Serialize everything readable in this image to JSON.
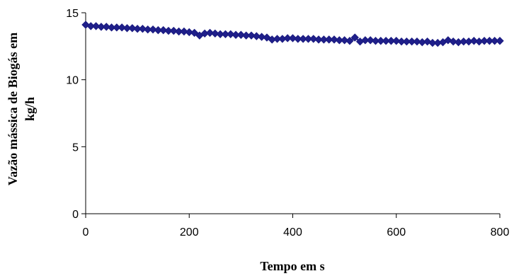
{
  "chart_data": {
    "type": "line",
    "title": "",
    "xlabel": "Tempo em s",
    "ylabel_lines": [
      "Vazão mássica de Biogás em",
      "kg/h"
    ],
    "xlim": [
      0,
      800
    ],
    "ylim": [
      0,
      15
    ],
    "x_ticks": [
      0,
      200,
      400,
      600,
      800
    ],
    "y_ticks": [
      0,
      5,
      10,
      15
    ],
    "x_tick_labels": [
      "0",
      "200",
      "400",
      "600",
      "800"
    ],
    "y_tick_labels": [
      "0",
      "5",
      "10",
      "15"
    ],
    "grid": false,
    "legend": "none",
    "colors": {
      "series": "#1a1a80",
      "marker": "#1f1f8a",
      "axis": "#000000"
    },
    "series": [
      {
        "marker": "diamond",
        "x": [
          0,
          10,
          20,
          30,
          40,
          50,
          60,
          70,
          80,
          90,
          100,
          110,
          120,
          130,
          140,
          150,
          160,
          170,
          180,
          190,
          200,
          210,
          220,
          230,
          240,
          250,
          260,
          270,
          280,
          290,
          300,
          310,
          320,
          330,
          340,
          350,
          360,
          370,
          380,
          390,
          400,
          410,
          420,
          430,
          440,
          450,
          460,
          470,
          480,
          490,
          500,
          510,
          520,
          530,
          540,
          550,
          560,
          570,
          580,
          590,
          600,
          610,
          620,
          630,
          640,
          650,
          660,
          670,
          680,
          690,
          700,
          710,
          720,
          730,
          740,
          750,
          760,
          770,
          780,
          790,
          800
        ],
        "y": [
          14.1,
          14.0,
          14.0,
          13.95,
          13.95,
          13.9,
          13.9,
          13.9,
          13.85,
          13.85,
          13.8,
          13.8,
          13.75,
          13.75,
          13.7,
          13.7,
          13.65,
          13.65,
          13.6,
          13.6,
          13.55,
          13.5,
          13.3,
          13.45,
          13.5,
          13.45,
          13.4,
          13.4,
          13.4,
          13.35,
          13.35,
          13.3,
          13.3,
          13.25,
          13.2,
          13.15,
          13.0,
          13.05,
          13.05,
          13.1,
          13.1,
          13.05,
          13.05,
          13.05,
          13.05,
          13.0,
          13.0,
          13.0,
          13.0,
          12.95,
          12.95,
          12.9,
          13.15,
          12.85,
          12.95,
          12.95,
          12.9,
          12.9,
          12.9,
          12.9,
          12.9,
          12.85,
          12.85,
          12.85,
          12.85,
          12.8,
          12.85,
          12.75,
          12.75,
          12.8,
          12.95,
          12.85,
          12.8,
          12.85,
          12.85,
          12.9,
          12.85,
          12.9,
          12.9,
          12.9,
          12.9
        ]
      }
    ]
  }
}
